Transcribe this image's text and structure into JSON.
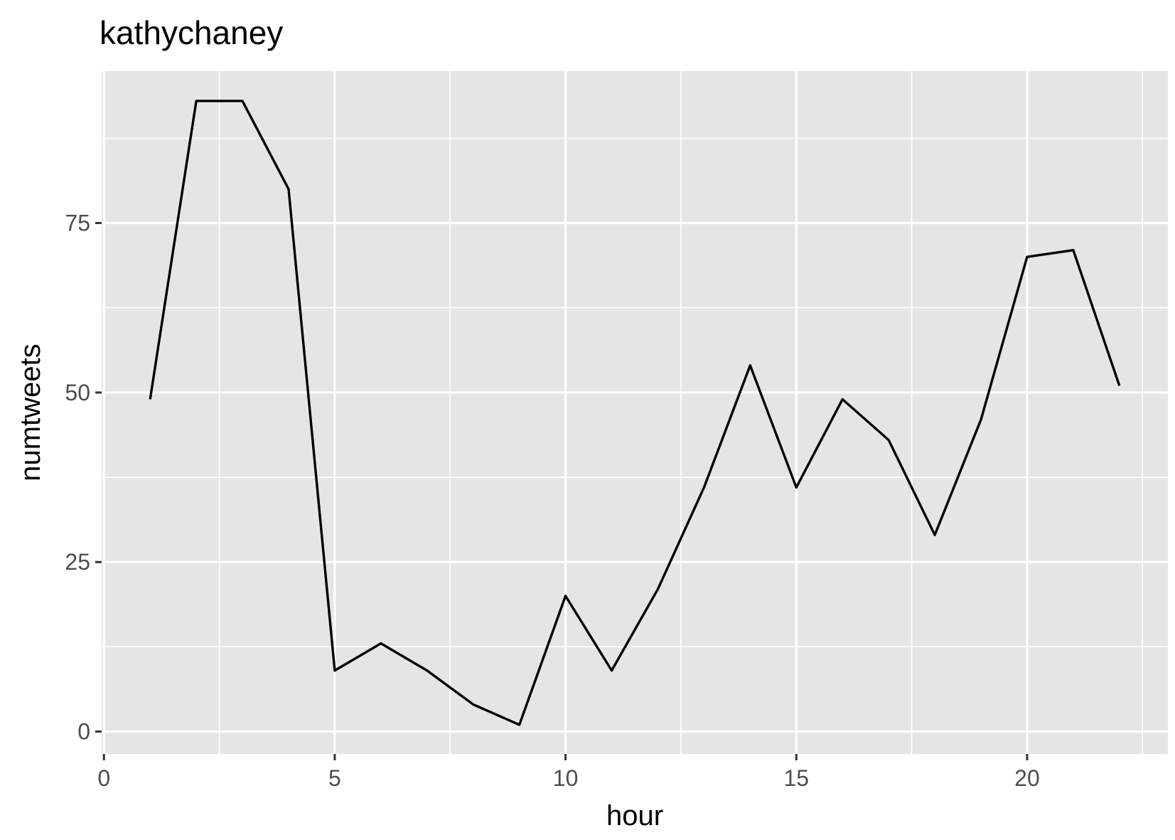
{
  "chart_data": {
    "type": "line",
    "title": "kathychaney",
    "xlabel": "hour",
    "ylabel": "numtweets",
    "xlim": [
      -0.05,
      23.05
    ],
    "ylim": [
      -3.3,
      97.4
    ],
    "x_ticks": [
      0,
      5,
      10,
      15,
      20
    ],
    "x_tick_labels": [
      "0",
      "5",
      "10",
      "15",
      "20"
    ],
    "y_ticks": [
      0,
      25,
      50,
      75
    ],
    "y_tick_labels": [
      "0",
      "25",
      "50",
      "75"
    ],
    "grid": true,
    "legend": "none",
    "colors": {
      "panel": "#e5e5e5",
      "grid": "#ffffff",
      "line": "#000000",
      "tick_text": "#4d4d4d"
    },
    "series": [
      {
        "x": [
          1,
          2,
          3,
          4,
          5,
          6,
          7,
          8,
          9,
          10,
          11,
          12,
          13,
          14,
          15,
          16,
          17,
          18,
          19,
          20,
          21,
          22
        ],
        "values": [
          49,
          93,
          93,
          80,
          9,
          13,
          9,
          4,
          1,
          20,
          9,
          21,
          36,
          54,
          36,
          49,
          43,
          29,
          46,
          70,
          71,
          51
        ]
      }
    ]
  }
}
